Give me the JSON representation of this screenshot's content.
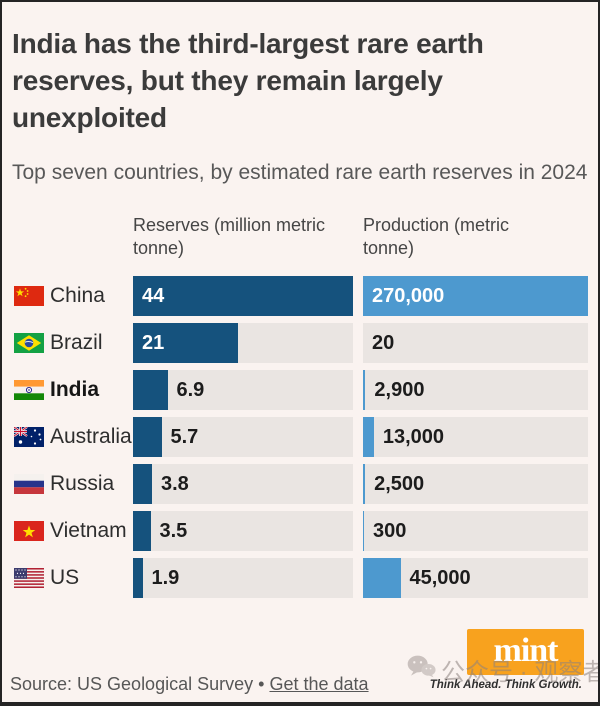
{
  "title": "India has the third-largest rare earth reserves, but they remain largely unexploited",
  "subtitle": "Top seven countries, by estimated rare earth reserves in 2024",
  "columns": {
    "reserves_header": "Reserves (million metric tonne)",
    "production_header": "Production (metric tonne)"
  },
  "chart_data": {
    "type": "bar",
    "orientation": "horizontal",
    "title": "India has the third-largest rare earth reserves, but they remain largely unexploited",
    "subtitle": "Top seven countries, by estimated rare earth reserves in 2024",
    "categories": [
      "China",
      "Brazil",
      "India",
      "Australia",
      "Russia",
      "Vietnam",
      "US"
    ],
    "series": [
      {
        "name": "Reserves (million metric tonne)",
        "values": [
          44,
          21,
          6.9,
          5.7,
          3.8,
          3.5,
          1.9
        ],
        "labels": [
          "44",
          "21",
          "6.9",
          "5.7",
          "3.8",
          "3.5",
          "1.9"
        ],
        "color": "#15527d",
        "max": 44
      },
      {
        "name": "Production (metric tonne)",
        "values": [
          270000,
          20,
          2900,
          13000,
          2500,
          300,
          45000
        ],
        "labels": [
          "270,000",
          "20",
          "2,900",
          "13,000",
          "2,500",
          "300",
          "45,000"
        ],
        "color": "#4d99cf",
        "max": 270000
      }
    ],
    "highlighted_category": "India",
    "legend": false,
    "gridlines": false
  },
  "rows": [
    {
      "country": "China",
      "flag": "china-flag",
      "emphasis": false
    },
    {
      "country": "Brazil",
      "flag": "brazil-flag",
      "emphasis": false
    },
    {
      "country": "India",
      "flag": "india-flag",
      "emphasis": true
    },
    {
      "country": "Australia",
      "flag": "australia-flag",
      "emphasis": false
    },
    {
      "country": "Russia",
      "flag": "russia-flag",
      "emphasis": false
    },
    {
      "country": "Vietnam",
      "flag": "vietnam-flag",
      "emphasis": false
    },
    {
      "country": "US",
      "flag": "us-flag",
      "emphasis": false
    }
  ],
  "footer": {
    "source_label": "Source: US Geological Survey",
    "separator": "•",
    "link_label": "Get the data"
  },
  "branding": {
    "logo_text": "mint",
    "tagline": "Think Ahead. Think Growth.",
    "logo_bg": "#f8a21e"
  },
  "watermark": {
    "icon": "wechat-icon",
    "text": "公众号 · 观察者网"
  },
  "colors": {
    "background": "#faf3f0",
    "track": "#eae5e2",
    "reserves_bar": "#15527d",
    "production_bar": "#4d99cf",
    "title_text": "#3b3b3b",
    "muted_text": "#585858"
  }
}
